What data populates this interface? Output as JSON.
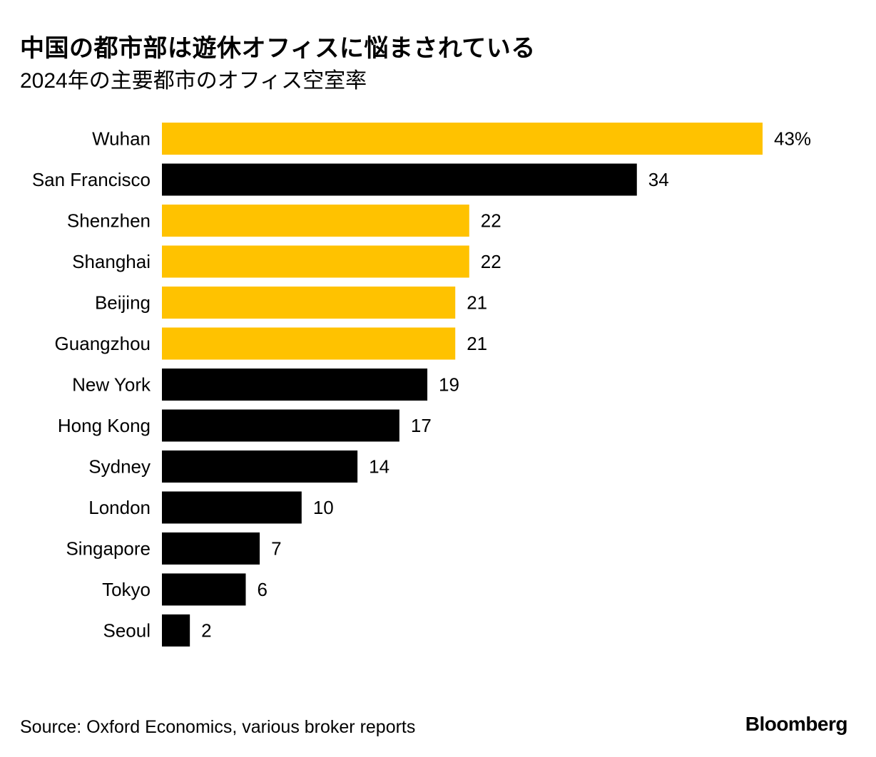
{
  "title": "中国の都市部は遊休オフィスに悩まされている",
  "subtitle": "2024年の主要都市のオフィス空室率",
  "source": "Source: Oxford Economics, various broker reports",
  "brand": "Bloomberg",
  "colors": {
    "highlight": "#FFC200",
    "default": "#000000"
  },
  "chart_data": {
    "type": "bar",
    "orientation": "horizontal",
    "categories": [
      "Wuhan",
      "San Francisco",
      "Shenzhen",
      "Shanghai",
      "Beijing",
      "Guangzhou",
      "New York",
      "Hong Kong",
      "Sydney",
      "London",
      "Singapore",
      "Tokyo",
      "Seoul"
    ],
    "values": [
      43,
      34,
      22,
      22,
      21,
      21,
      19,
      17,
      14,
      10,
      7,
      6,
      2
    ],
    "value_labels": [
      "43%",
      "34",
      "22",
      "22",
      "21",
      "21",
      "19",
      "17",
      "14",
      "10",
      "7",
      "6",
      "2"
    ],
    "highlighted": [
      true,
      false,
      true,
      true,
      true,
      true,
      false,
      false,
      false,
      false,
      false,
      false,
      false
    ],
    "title": "中国の都市部は遊休オフィスに悩まされている",
    "subtitle": "2024年の主要都市のオフィス空室率",
    "xlabel": "",
    "ylabel": "",
    "xlim": [
      0,
      43
    ],
    "grid": false,
    "legend": "none"
  }
}
